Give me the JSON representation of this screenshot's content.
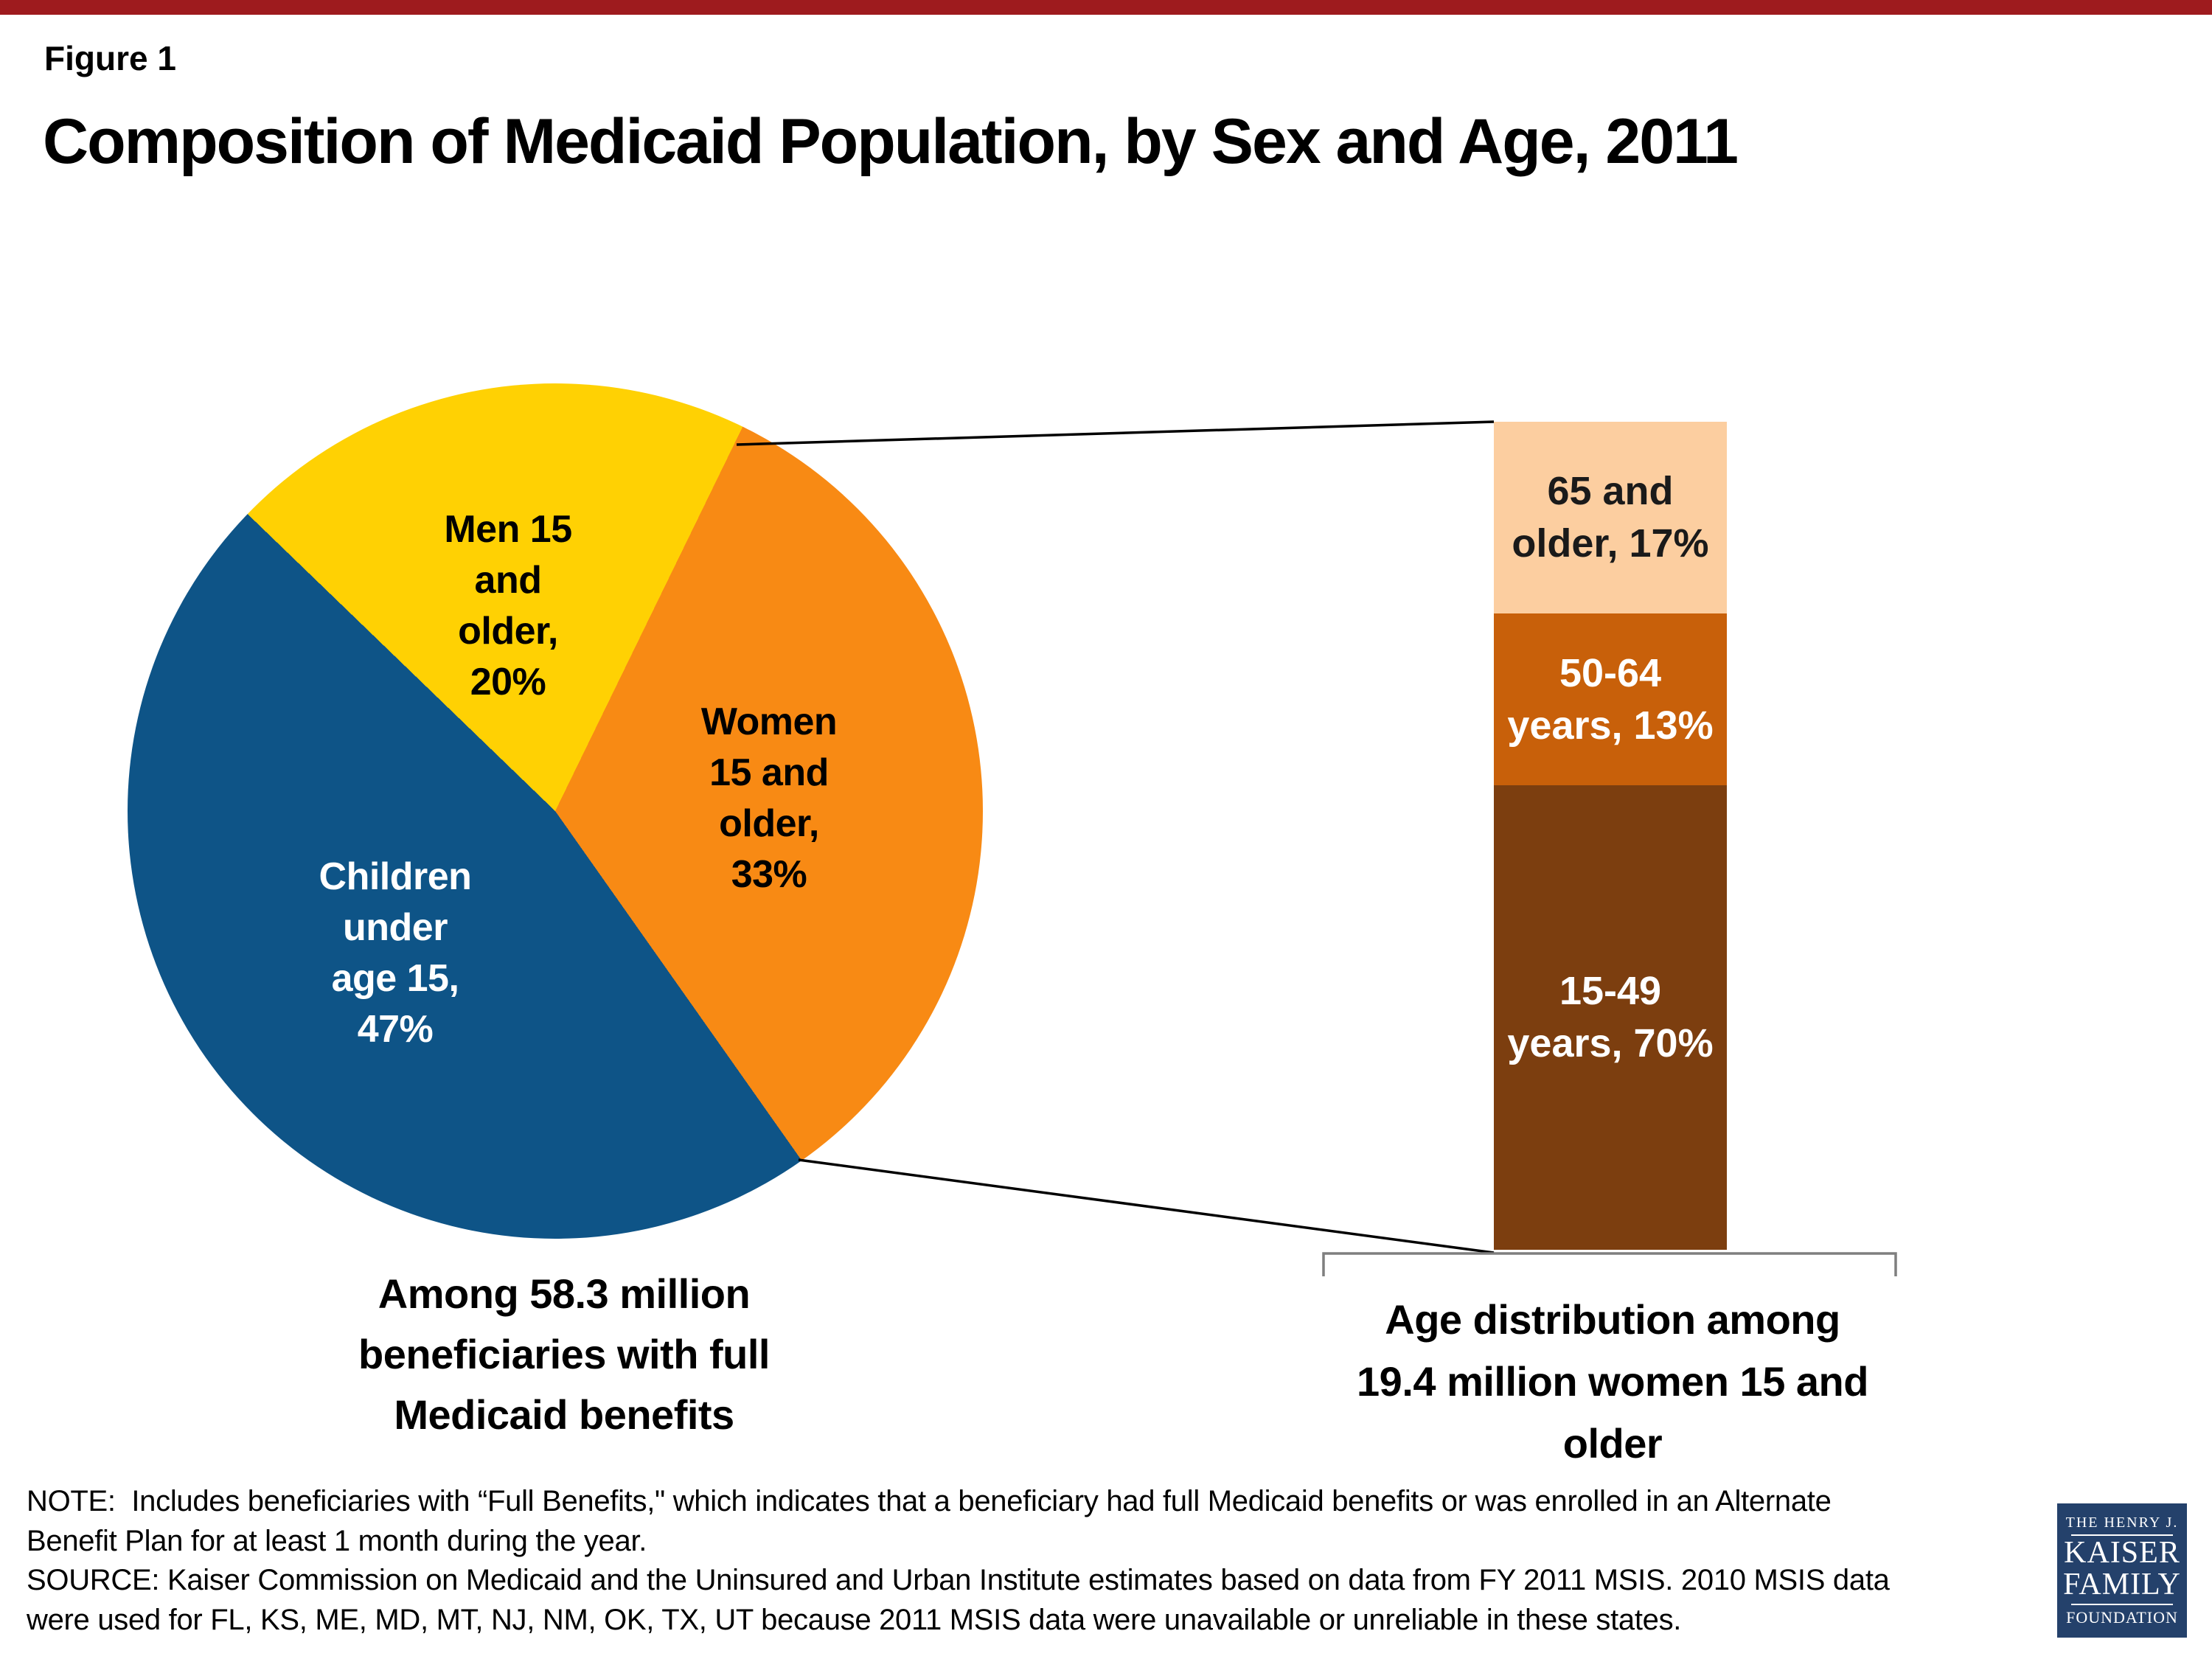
{
  "slide": {
    "figure_label": "Figure 1",
    "title": "Composition of Medicaid Population, by Sex and Age, 2011",
    "accent_bar_color": "#9E1B1E",
    "background_color": "#FFFFFF"
  },
  "chart_data": [
    {
      "type": "pie",
      "title": "Among 58.3 million beneficiaries with full Medicaid benefits",
      "total": "58.3 million beneficiaries",
      "start_angle_deg_clockwise_from_north": 26,
      "slices": [
        {
          "label": "Women 15 and older",
          "value_pct": 33,
          "color": "#F88A14",
          "text_color": "#000000",
          "label_lines": [
            "Women",
            "15 and",
            "older,",
            "33%"
          ]
        },
        {
          "label": "Children under age 15",
          "value_pct": 47,
          "color": "#0E5487",
          "text_color": "#FFFFFF",
          "label_lines": [
            "Children",
            "under",
            "age 15,",
            "47%"
          ]
        },
        {
          "label": "Men 15 and older",
          "value_pct": 20,
          "color": "#FFD103",
          "text_color": "#000000",
          "label_lines": [
            "Men 15",
            "and",
            "older,",
            "20%"
          ]
        }
      ],
      "caption_lines": [
        "Among 58.3 million",
        "beneficiaries with full",
        "Medicaid benefits"
      ]
    },
    {
      "type": "bar",
      "subtype": "single-column-stacked",
      "title": "Age distribution among 19.4 million women 15 and older",
      "total": "19.4 million women 15 and older",
      "segments": [
        {
          "label": "65 and older",
          "value_pct": 17,
          "color": "#FCCEA0",
          "text_color": "#1A1A1A",
          "label_lines": [
            "65 and",
            "older, 17%"
          ]
        },
        {
          "label": "50-64 years",
          "value_pct": 13,
          "color": "#C8600A",
          "text_color": "#FFFFFF",
          "label_lines": [
            "50-64",
            "years, 13%"
          ]
        },
        {
          "label": "15-49 years",
          "value_pct": 70,
          "color": "#7C3E0F",
          "text_color": "#FFFFFF",
          "label_lines": [
            "15-49",
            "years, 70%"
          ]
        }
      ],
      "caption_lines": [
        "Age distribution among",
        "19.4 million women 15 and",
        "older"
      ],
      "bracket_color": "#7F7F7F",
      "connector_color": "#000000"
    }
  ],
  "notes": {
    "lines": [
      "NOTE:  Includes beneficiaries with “Full Benefits,\" which indicates that a beneficiary had full Medicaid benefits or was enrolled in an Alternate",
      "Benefit Plan for at least 1 month during the year.",
      "SOURCE: Kaiser Commission on Medicaid and the Uninsured and Urban Institute estimates based on data from FY 2011 MSIS. 2010 MSIS data",
      "were used for FL, KS, ME, MD, MT, NJ, NM, OK, TX, UT because 2011 MSIS data were unavailable or unreliable in these states."
    ]
  },
  "logo": {
    "line1": "THE HENRY J.",
    "line2": "KAISER",
    "line3": "FAMILY",
    "line4": "FOUNDATION",
    "bg_color": "#24416B"
  }
}
